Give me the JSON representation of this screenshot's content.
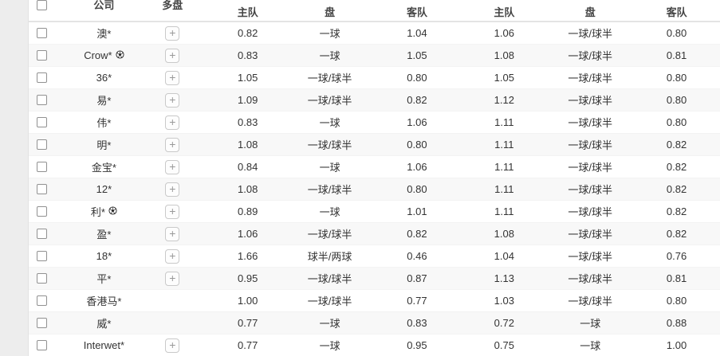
{
  "table": {
    "headers": {
      "select_all": "",
      "company": "公司",
      "multi": "多盘",
      "group1": {
        "home": "主队",
        "handicap": "盘",
        "away": "客队"
      },
      "group2": {
        "home": "主队",
        "handicap": "盘",
        "away": "客队"
      }
    },
    "rows": [
      {
        "company": "澳*",
        "ball": false,
        "multi": true,
        "odds": [
          "0.82",
          "一球",
          "1.04",
          "1.06",
          "一球/球半",
          "0.80"
        ]
      },
      {
        "company": "Crow*",
        "ball": true,
        "multi": true,
        "odds": [
          "0.83",
          "一球",
          "1.05",
          "1.08",
          "一球/球半",
          "0.81"
        ]
      },
      {
        "company": "36*",
        "ball": false,
        "multi": true,
        "odds": [
          "1.05",
          "一球/球半",
          "0.80",
          "1.05",
          "一球/球半",
          "0.80"
        ]
      },
      {
        "company": "易*",
        "ball": false,
        "multi": true,
        "odds": [
          "1.09",
          "一球/球半",
          "0.82",
          "1.12",
          "一球/球半",
          "0.80"
        ]
      },
      {
        "company": "伟*",
        "ball": false,
        "multi": true,
        "odds": [
          "0.83",
          "一球",
          "1.06",
          "1.11",
          "一球/球半",
          "0.80"
        ]
      },
      {
        "company": "明*",
        "ball": false,
        "multi": true,
        "odds": [
          "1.08",
          "一球/球半",
          "0.80",
          "1.11",
          "一球/球半",
          "0.82"
        ]
      },
      {
        "company": "金宝*",
        "ball": false,
        "multi": true,
        "odds": [
          "0.84",
          "一球",
          "1.06",
          "1.11",
          "一球/球半",
          "0.82"
        ]
      },
      {
        "company": "12*",
        "ball": false,
        "multi": true,
        "odds": [
          "1.08",
          "一球/球半",
          "0.80",
          "1.11",
          "一球/球半",
          "0.82"
        ]
      },
      {
        "company": "利*",
        "ball": true,
        "multi": true,
        "odds": [
          "0.89",
          "一球",
          "1.01",
          "1.11",
          "一球/球半",
          "0.82"
        ]
      },
      {
        "company": "盈*",
        "ball": false,
        "multi": true,
        "odds": [
          "1.06",
          "一球/球半",
          "0.82",
          "1.08",
          "一球/球半",
          "0.82"
        ]
      },
      {
        "company": "18*",
        "ball": false,
        "multi": true,
        "odds": [
          "1.66",
          "球半/两球",
          "0.46",
          "1.04",
          "一球/球半",
          "0.76"
        ]
      },
      {
        "company": "平*",
        "ball": false,
        "multi": true,
        "odds": [
          "0.95",
          "一球/球半",
          "0.87",
          "1.13",
          "一球/球半",
          "0.81"
        ]
      },
      {
        "company": "香港马*",
        "ball": false,
        "multi": false,
        "odds": [
          "1.00",
          "一球/球半",
          "0.77",
          "1.03",
          "一球/球半",
          "0.80"
        ]
      },
      {
        "company": "威*",
        "ball": false,
        "multi": false,
        "odds": [
          "0.77",
          "一球",
          "0.83",
          "0.72",
          "一球",
          "0.88"
        ]
      },
      {
        "company": "Interwet*",
        "ball": false,
        "multi": true,
        "odds": [
          "0.77",
          "一球",
          "0.95",
          "0.75",
          "一球",
          "1.00"
        ]
      }
    ]
  },
  "icons": {
    "multi_expand": "plus-icon",
    "live_match": "soccer-ball-icon"
  },
  "colors": {
    "page_bg": "#ededed",
    "row_alt_bg": "#f8f8f8",
    "header_border": "#e4e4e4",
    "text": "#333333",
    "plus_button_border": "#c9c9c9"
  }
}
